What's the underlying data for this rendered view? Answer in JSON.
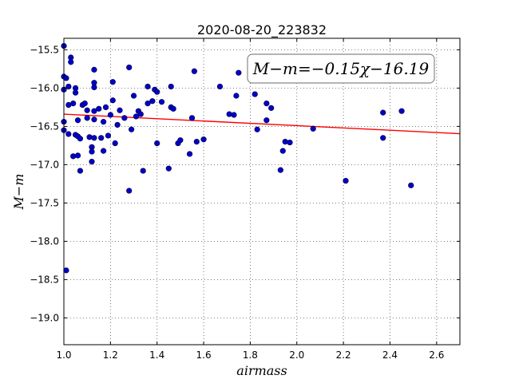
{
  "chart_data": {
    "type": "scatter",
    "title": "2020-08-20_223832",
    "xlabel": "airmass",
    "ylabel": "M−m",
    "xlim": [
      1.0,
      2.7
    ],
    "ylim": [
      -19.35,
      -15.35
    ],
    "y_inverted": true,
    "grid": true,
    "x_ticks": [
      1.0,
      1.2,
      1.4,
      1.6,
      1.8,
      2.0,
      2.2,
      2.4,
      2.6
    ],
    "x_tick_labels": [
      "1.0",
      "1.2",
      "1.4",
      "1.6",
      "1.8",
      "2.0",
      "2.2",
      "2.4",
      "2.6"
    ],
    "y_ticks": [
      -15.5,
      -16.0,
      -16.5,
      -17.0,
      -17.5,
      -18.0,
      -18.5,
      -19.0
    ],
    "y_tick_labels": [
      "−15.5",
      "−16.0",
      "−16.5",
      "−17.0",
      "−17.5",
      "−18.0",
      "−18.5",
      "−19.0"
    ],
    "annotation": "M−m=−0.15χ−16.19",
    "fit": {
      "slope": -0.15,
      "intercept": -16.19,
      "color": "#ff0000"
    },
    "marker_color": "#0000cc",
    "points": [
      [
        1.0,
        -15.45
      ],
      [
        1.0,
        -15.85
      ],
      [
        1.0,
        -16.02
      ],
      [
        1.0,
        -16.44
      ],
      [
        1.0,
        -16.55
      ],
      [
        1.01,
        -18.38
      ],
      [
        1.01,
        -15.87
      ],
      [
        1.02,
        -15.98
      ],
      [
        1.02,
        -16.22
      ],
      [
        1.02,
        -16.6
      ],
      [
        1.03,
        -15.6
      ],
      [
        1.03,
        -15.66
      ],
      [
        1.04,
        -16.2
      ],
      [
        1.04,
        -16.89
      ],
      [
        1.05,
        -16.0
      ],
      [
        1.05,
        -16.06
      ],
      [
        1.05,
        -16.61
      ],
      [
        1.06,
        -16.42
      ],
      [
        1.06,
        -16.63
      ],
      [
        1.06,
        -16.88
      ],
      [
        1.07,
        -16.66
      ],
      [
        1.07,
        -17.08
      ],
      [
        1.08,
        -16.22
      ],
      [
        1.09,
        -16.2
      ],
      [
        1.1,
        -16.29
      ],
      [
        1.1,
        -16.39
      ],
      [
        1.11,
        -16.64
      ],
      [
        1.12,
        -16.77
      ],
      [
        1.12,
        -16.83
      ],
      [
        1.12,
        -16.96
      ],
      [
        1.13,
        -15.76
      ],
      [
        1.13,
        -15.93
      ],
      [
        1.13,
        -15.99
      ],
      [
        1.13,
        -16.3
      ],
      [
        1.13,
        -16.41
      ],
      [
        1.13,
        -16.65
      ],
      [
        1.15,
        -16.27
      ],
      [
        1.16,
        -16.65
      ],
      [
        1.17,
        -16.44
      ],
      [
        1.17,
        -16.82
      ],
      [
        1.18,
        -16.25
      ],
      [
        1.19,
        -16.62
      ],
      [
        1.2,
        -16.35
      ],
      [
        1.21,
        -15.92
      ],
      [
        1.21,
        -16.16
      ],
      [
        1.22,
        -16.72
      ],
      [
        1.23,
        -16.48
      ],
      [
        1.24,
        -16.29
      ],
      [
        1.26,
        -16.39
      ],
      [
        1.28,
        -15.73
      ],
      [
        1.28,
        -17.34
      ],
      [
        1.29,
        -16.54
      ],
      [
        1.3,
        -16.1
      ],
      [
        1.31,
        -16.37
      ],
      [
        1.32,
        -16.3
      ],
      [
        1.33,
        -16.34
      ],
      [
        1.34,
        -17.08
      ],
      [
        1.36,
        -15.98
      ],
      [
        1.36,
        -16.2
      ],
      [
        1.38,
        -16.17
      ],
      [
        1.39,
        -16.02
      ],
      [
        1.4,
        -16.05
      ],
      [
        1.4,
        -16.72
      ],
      [
        1.42,
        -16.18
      ],
      [
        1.45,
        -17.05
      ],
      [
        1.46,
        -15.98
      ],
      [
        1.46,
        -16.25
      ],
      [
        1.47,
        -16.27
      ],
      [
        1.49,
        -16.72
      ],
      [
        1.5,
        -16.68
      ],
      [
        1.54,
        -16.86
      ],
      [
        1.55,
        -16.39
      ],
      [
        1.56,
        -15.78
      ],
      [
        1.57,
        -16.7
      ],
      [
        1.6,
        -16.67
      ],
      [
        1.67,
        -15.98
      ],
      [
        1.71,
        -16.34
      ],
      [
        1.73,
        -16.35
      ],
      [
        1.74,
        -16.1
      ],
      [
        1.75,
        -15.8
      ],
      [
        1.82,
        -16.08
      ],
      [
        1.83,
        -16.54
      ],
      [
        1.87,
        -16.42
      ],
      [
        1.87,
        -16.2
      ],
      [
        1.89,
        -16.26
      ],
      [
        1.93,
        -17.07
      ],
      [
        1.94,
        -16.82
      ],
      [
        1.95,
        -16.7
      ],
      [
        1.97,
        -16.71
      ],
      [
        2.07,
        -16.53
      ],
      [
        2.21,
        -17.21
      ],
      [
        2.37,
        -16.32
      ],
      [
        2.37,
        -16.65
      ],
      [
        2.45,
        -16.3
      ],
      [
        2.49,
        -17.27
      ]
    ]
  }
}
